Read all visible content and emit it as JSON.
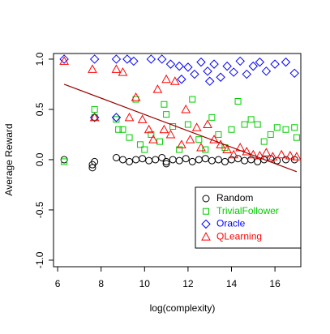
{
  "chart_data": {
    "type": "scatter",
    "xlabel": "log(complexity)",
    "ylabel": "Average Reward",
    "xlim": [
      5.81,
      17.19
    ],
    "ylim": [
      -1.065,
      1.056
    ],
    "xticks": [
      6,
      8,
      10,
      12,
      14,
      16
    ],
    "yticks": [
      {
        "value": -1,
        "label": "-1.0"
      },
      {
        "value": -0.5,
        "label": "-0.5"
      },
      {
        "value": 0,
        "label": "0.0"
      },
      {
        "value": 0.5,
        "label": "0.5"
      },
      {
        "value": 1,
        "label": "1.0"
      }
    ],
    "legend": "bottom-right",
    "series": [
      {
        "name": "Random",
        "color": "#000000",
        "marker": "circle",
        "x": [
          6.3,
          7.6,
          7.6,
          7.7,
          8.7,
          9.0,
          9.3,
          9.6,
          9.9,
          10.2,
          10.5,
          10.8,
          11.0,
          11.0,
          11.3,
          11.6,
          11.9,
          12.2,
          12.5,
          12.8,
          13.1,
          13.4,
          13.7,
          14.0,
          14.3,
          14.6,
          14.9,
          15.2,
          15.5,
          15.8,
          16.1,
          16.5,
          16.9
        ],
        "y": [
          0.0,
          -0.05,
          -0.08,
          -0.02,
          0.02,
          0.0,
          -0.02,
          0.0,
          0.01,
          -0.01,
          0.0,
          0.02,
          -0.04,
          -0.02,
          0.0,
          -0.01,
          0.01,
          -0.02,
          0.0,
          0.01,
          -0.01,
          0.0,
          -0.02,
          0.0,
          0.01,
          -0.01,
          0.0,
          -0.02,
          0.0,
          0.01,
          -0.01,
          0.0,
          0.0
        ]
      },
      {
        "name": "TrivialFollower",
        "color": "#00cc00",
        "marker": "square",
        "x": [
          6.3,
          7.7,
          7.7,
          8.7,
          8.8,
          9.0,
          9.3,
          9.6,
          9.8,
          10.0,
          10.3,
          10.7,
          10.9,
          11.0,
          11.3,
          11.6,
          12.0,
          12.2,
          12.5,
          12.8,
          13.1,
          13.4,
          13.7,
          14.0,
          14.3,
          14.6,
          14.9,
          15.2,
          15.5,
          15.8,
          16.1,
          16.5,
          16.9,
          17.0
        ],
        "y": [
          -0.02,
          0.5,
          0.42,
          0.4,
          0.3,
          0.3,
          0.22,
          0.6,
          0.15,
          0.1,
          0.25,
          0.18,
          0.55,
          0.45,
          0.33,
          0.1,
          0.35,
          0.6,
          0.2,
          0.1,
          0.42,
          0.25,
          0.12,
          0.3,
          0.58,
          0.35,
          0.4,
          0.35,
          0.18,
          0.25,
          0.32,
          0.3,
          0.32,
          0.22
        ]
      },
      {
        "name": "Oracle",
        "color": "#0000ff",
        "marker": "diamond",
        "x": [
          6.3,
          7.7,
          7.7,
          8.7,
          8.7,
          9.2,
          9.5,
          10.3,
          10.8,
          11.2,
          11.6,
          11.7,
          12.0,
          12.3,
          12.6,
          12.9,
          13.0,
          13.2,
          13.5,
          13.8,
          14.1,
          14.4,
          14.7,
          15.0,
          15.3,
          15.6,
          16.0,
          16.5,
          16.9
        ],
        "y": [
          1.0,
          1.0,
          0.42,
          1.0,
          0.42,
          1.0,
          0.98,
          1.0,
          1.0,
          0.95,
          0.93,
          0.8,
          0.92,
          0.85,
          0.97,
          0.88,
          0.78,
          0.95,
          0.82,
          0.93,
          0.87,
          0.98,
          0.85,
          0.93,
          0.97,
          0.88,
          0.95,
          0.97,
          0.86
        ]
      },
      {
        "name": "QLearning",
        "color": "#ff0000",
        "marker": "triangle",
        "x": [
          6.3,
          7.6,
          7.7,
          8.7,
          9.0,
          9.3,
          9.6,
          9.9,
          10.2,
          10.4,
          10.6,
          10.9,
          11.0,
          11.2,
          11.4,
          11.7,
          11.9,
          12.1,
          12.4,
          12.6,
          12.9,
          13.2,
          13.5,
          13.8,
          14.1,
          14.4,
          14.7,
          15.0,
          15.3,
          15.6,
          15.9,
          16.3,
          16.7,
          17.0
        ],
        "y": [
          0.98,
          0.9,
          0.42,
          0.9,
          0.87,
          0.42,
          0.62,
          0.4,
          0.3,
          0.2,
          0.7,
          0.3,
          0.8,
          0.25,
          0.78,
          0.15,
          0.5,
          0.2,
          0.32,
          0.12,
          0.35,
          0.2,
          0.15,
          0.1,
          0.05,
          0.12,
          0.08,
          0.05,
          0.04,
          0.07,
          0.03,
          0.05,
          0.04,
          0.03
        ]
      }
    ],
    "trend_line": {
      "color": "#990000",
      "x": [
        6.3,
        17.0
      ],
      "y": [
        0.75,
        -0.12
      ]
    }
  }
}
